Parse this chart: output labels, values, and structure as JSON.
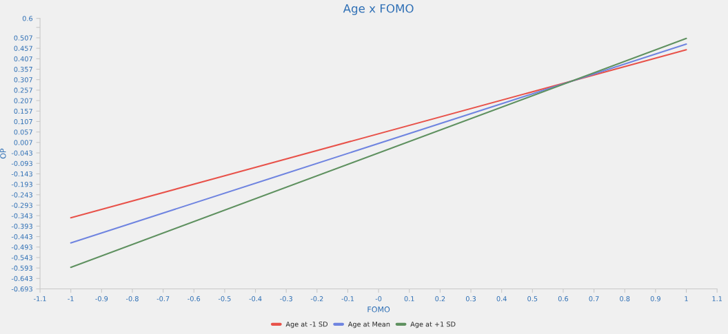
{
  "chart_data": {
    "type": "line",
    "title": "Age x FOMO",
    "xlabel": "FOMO",
    "ylabel": "OP",
    "x": [
      -1,
      1
    ],
    "series": [
      {
        "name": "Age at -1 SD",
        "color": "#e8524a",
        "values": [
          -0.353,
          0.45
        ]
      },
      {
        "name": "Age at Mean",
        "color": "#6f84e0",
        "values": [
          -0.473,
          0.477
        ]
      },
      {
        "name": "Age at +1 SD",
        "color": "#5f9160",
        "values": [
          -0.59,
          0.504
        ]
      }
    ],
    "xlim": [
      -1.1,
      1.1
    ],
    "xticks": [
      -1.1,
      -1,
      -0.9,
      -0.8,
      -0.7,
      -0.6,
      -0.5,
      -0.4,
      -0.3,
      -0.2,
      -0.1,
      {
        "value": 0,
        "label": "-0"
      },
      0.1,
      0.2,
      0.3,
      0.4,
      0.5,
      0.6,
      0.7,
      0.8,
      0.9,
      1,
      1.1
    ],
    "ylim": [
      -0.693,
      0.6
    ],
    "yticks": [
      -0.693,
      -0.643,
      -0.593,
      -0.543,
      -0.493,
      -0.443,
      -0.393,
      -0.343,
      -0.293,
      -0.243,
      -0.193,
      -0.143,
      -0.093,
      -0.043,
      0.007,
      0.057,
      0.107,
      0.157,
      0.207,
      0.257,
      0.307,
      0.357,
      0.407,
      0.457,
      0.507,
      {
        "value": 0.557,
        "label": null
      },
      0.6
    ],
    "grid": false,
    "legend": "bottom",
    "marker": "none",
    "line_style": "solid"
  }
}
